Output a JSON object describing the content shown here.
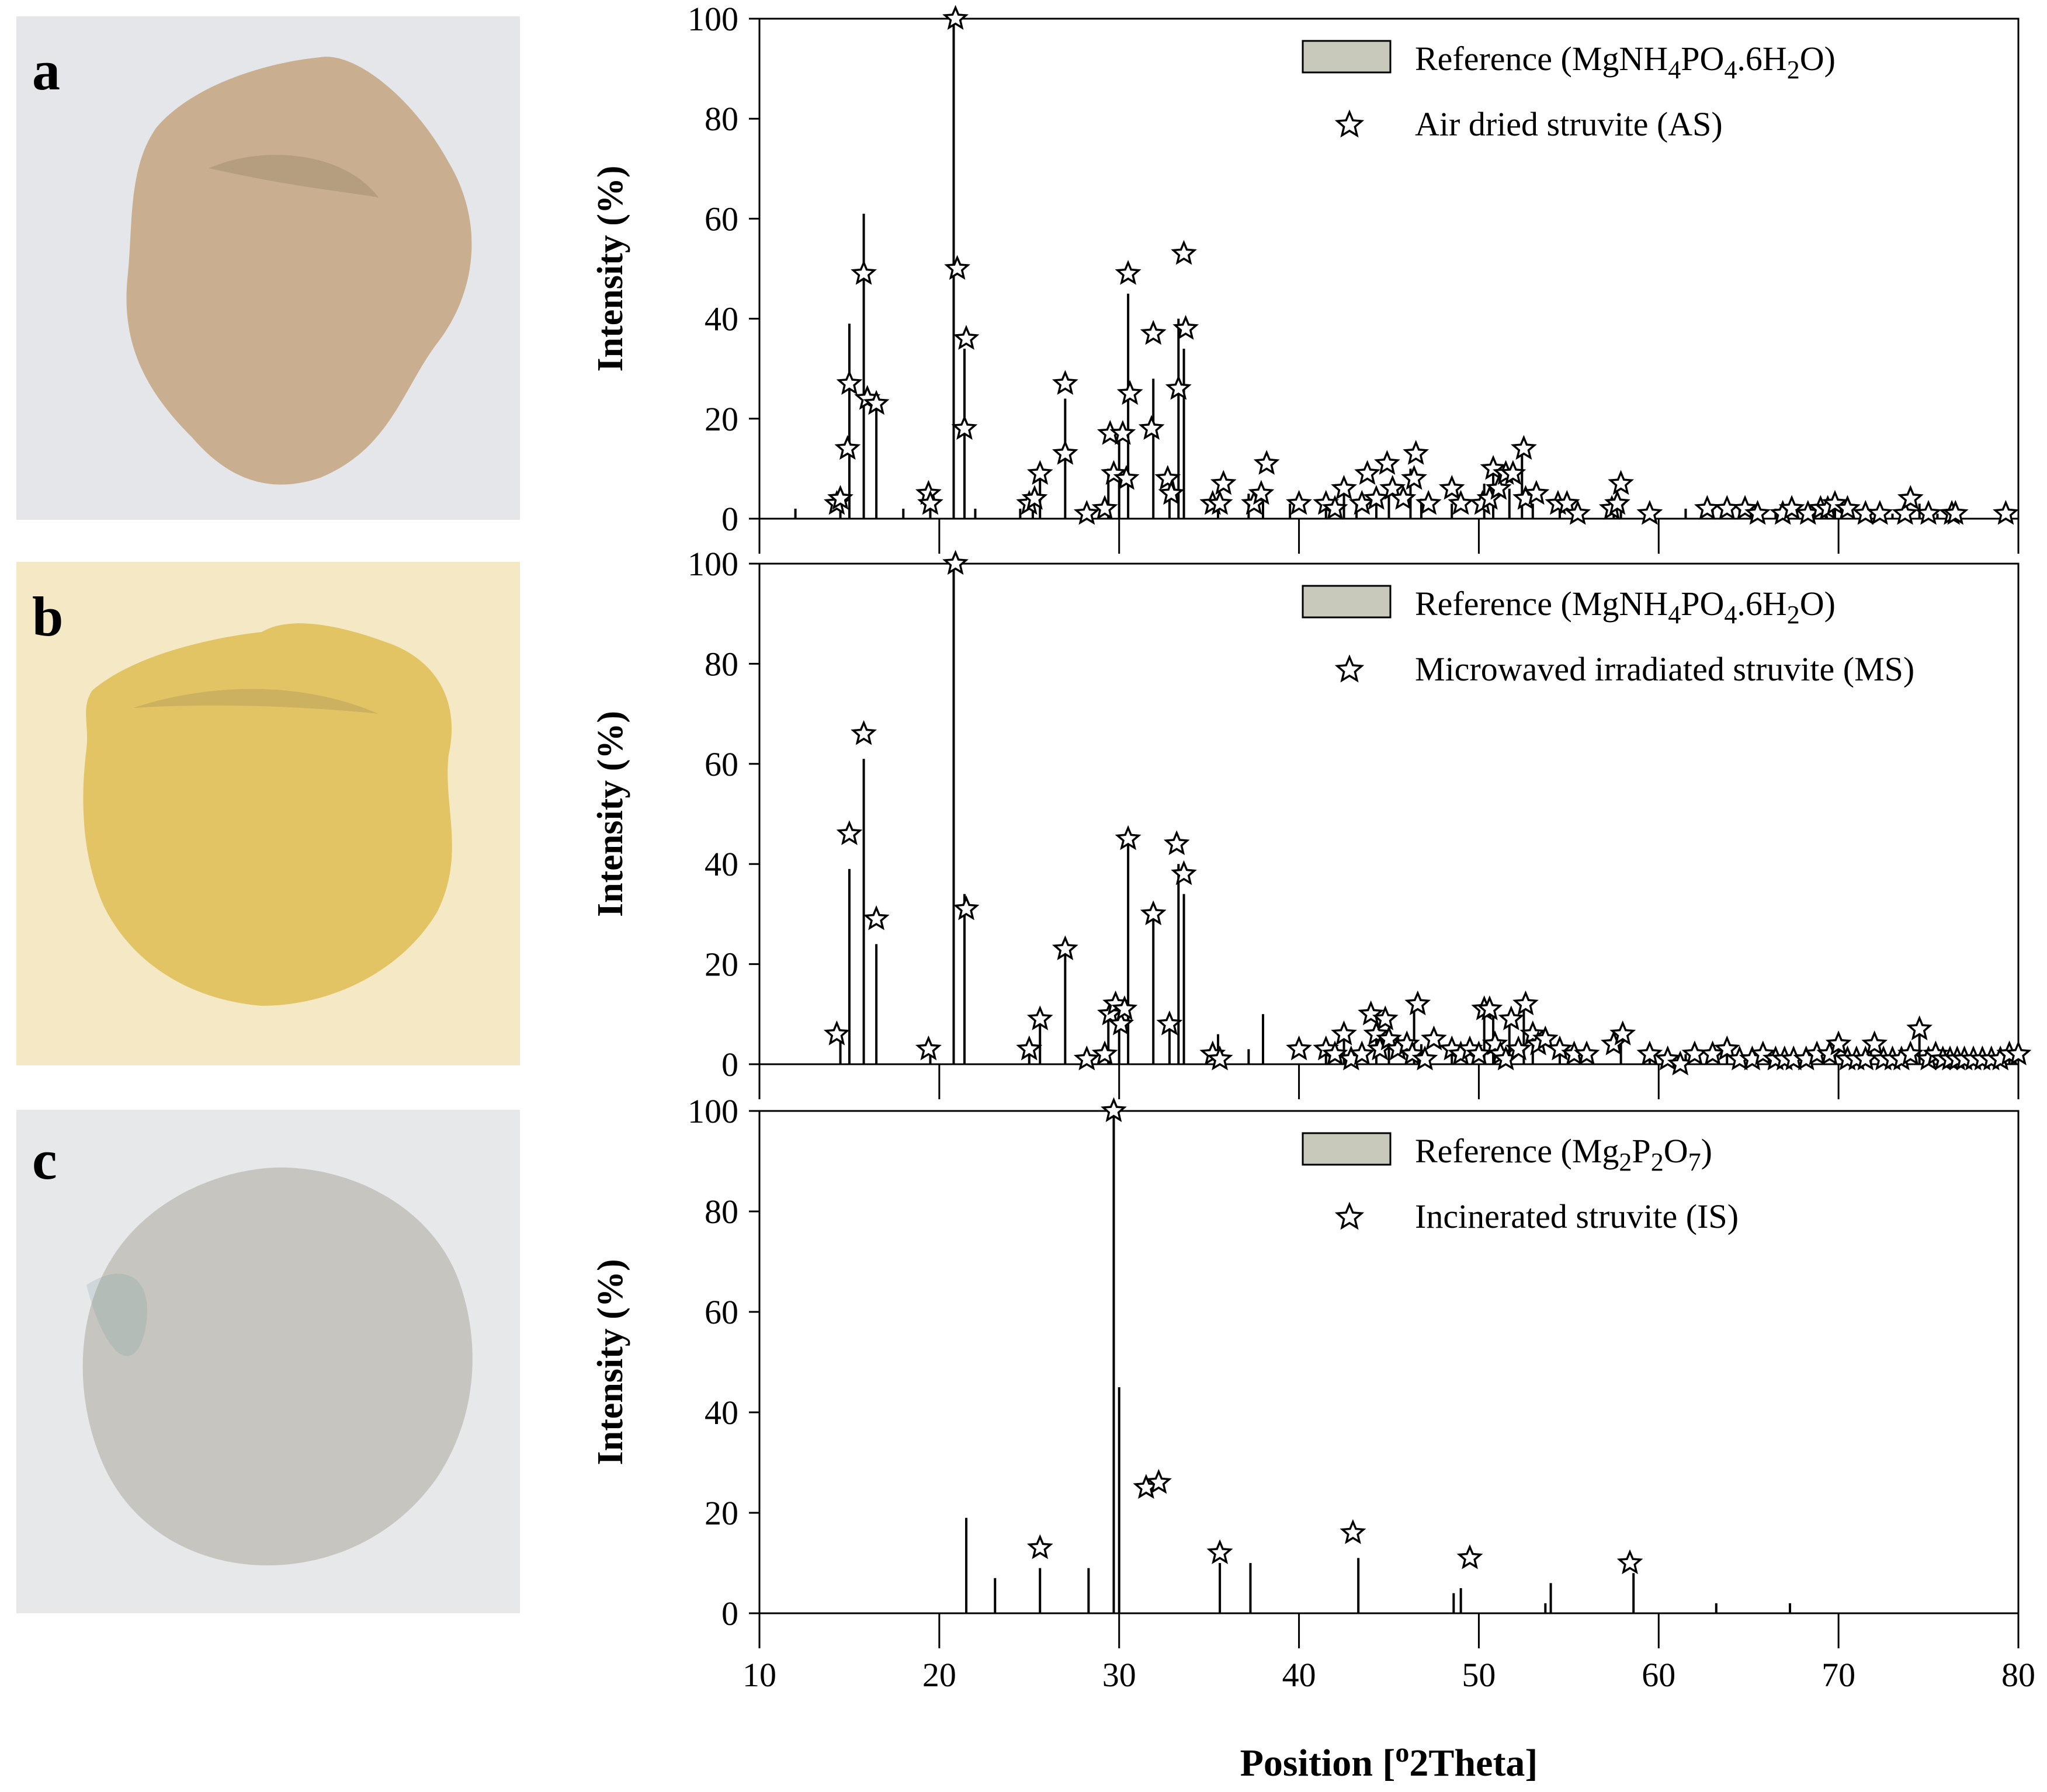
{
  "photos": [
    {
      "label": "a",
      "color": "#c9af90",
      "background": "#e4e6e9"
    },
    {
      "label": "b",
      "color": "#e2c465",
      "background": "#f4e9c4"
    },
    {
      "label": "c",
      "color": "#c6c5bf",
      "background": "#e6e8e9"
    }
  ],
  "colors": {
    "legend_box": "#c8c8bb",
    "line": "#000000",
    "star_fill": "#ffffff"
  },
  "chart_data": [
    {
      "type": "bar",
      "panel": "a",
      "ylabel": "Intensity (%)",
      "xlim": [
        10,
        80
      ],
      "ylim": [
        0,
        100
      ],
      "xticks": [
        10,
        20,
        30,
        40,
        50,
        60,
        70,
        80
      ],
      "yticks": [
        0,
        20,
        40,
        60,
        80,
        100
      ],
      "legend": {
        "reference": "Reference (MgNH4PO4.6H2O)",
        "sample": "Air dried struvite (AS)",
        "placement": "top-right"
      },
      "reference_peaks": {
        "x": [
          12.0,
          14.5,
          15.0,
          15.8,
          16.5,
          18.0,
          19.5,
          20.8,
          21.4,
          22.0,
          24.5,
          25.2,
          25.6,
          27.0,
          28.2,
          29.4,
          30.0,
          30.5,
          31.9,
          32.8,
          33.3,
          33.6,
          35.5,
          37.2,
          38.0,
          39.5,
          41.5,
          42.5,
          43.2,
          44.3,
          45.0,
          46.2,
          46.8,
          48.5,
          50.3,
          50.8,
          51.7,
          52.4,
          53.0,
          54.5,
          55.3,
          57.5,
          57.9,
          59.5,
          61.5,
          63.0,
          64.5,
          65.5,
          66.5,
          68.5,
          69.8,
          71.5,
          73.0,
          74.5,
          75.5,
          76.5,
          79.5
        ],
        "y": [
          2,
          3,
          39,
          61,
          24,
          2,
          2,
          100,
          34,
          2,
          2,
          5,
          8,
          24,
          3,
          10,
          18,
          45,
          28,
          7,
          40,
          34,
          3,
          5,
          6,
          3,
          3,
          5,
          4,
          6,
          6,
          10,
          4,
          3,
          7,
          10,
          6,
          14,
          3,
          2,
          2,
          3,
          4,
          2,
          2,
          2,
          2,
          1,
          2,
          2,
          3,
          2,
          1,
          3,
          1,
          1,
          1
        ]
      },
      "sample_markers": {
        "x": [
          14.3,
          14.5,
          14.9,
          15.0,
          15.8,
          16.0,
          16.5,
          19.4,
          19.5,
          20.9,
          21.0,
          21.5,
          21.4,
          25.0,
          25.3,
          25.6,
          27.0,
          27.0,
          28.2,
          29.2,
          29.5,
          29.7,
          30.2,
          30.4,
          30.5,
          30.6,
          31.8,
          31.9,
          32.7,
          32.9,
          33.3,
          33.6,
          33.7,
          35.2,
          35.6,
          35.8,
          37.5,
          37.9,
          38.2,
          40.0,
          41.5,
          42.0,
          42.5,
          43.5,
          43.8,
          44.3,
          44.9,
          45.2,
          45.8,
          46.4,
          46.5,
          47.2,
          48.5,
          49.0,
          50.2,
          50.6,
          50.8,
          51.1,
          51.5,
          51.9,
          52.5,
          52.6,
          53.2,
          54.4,
          54.9,
          55.5,
          57.4,
          57.7,
          57.9,
          59.5,
          62.7,
          63.8,
          64.8,
          65.5,
          66.9,
          67.4,
          68.3,
          69.0,
          69.4,
          69.8,
          70.5,
          71.5,
          72.3,
          73.7,
          74.0,
          75.0,
          76.3,
          76.5,
          79.3
        ],
        "y": [
          3,
          4,
          14,
          27,
          49,
          24,
          23,
          5,
          3,
          100,
          50,
          36,
          18,
          3,
          4,
          9,
          13,
          27,
          1,
          2,
          17,
          9,
          17,
          8,
          49,
          25,
          18,
          37,
          8,
          5,
          26,
          53,
          38,
          3,
          3,
          7,
          3,
          5,
          11,
          3,
          3,
          2,
          6,
          3,
          9,
          4,
          11,
          6,
          4,
          8,
          13,
          3,
          6,
          3,
          3,
          4,
          10,
          6,
          9,
          9,
          14,
          4,
          5,
          3,
          3,
          1,
          2,
          3,
          7,
          1,
          2,
          2,
          2,
          1,
          1,
          2,
          1,
          2,
          2,
          3,
          2,
          1,
          1,
          1,
          4,
          1,
          1,
          1,
          1
        ]
      }
    },
    {
      "type": "bar",
      "panel": "b",
      "ylabel": "Intensity (%)",
      "xlim": [
        10,
        80
      ],
      "ylim": [
        0,
        100
      ],
      "xticks": [
        10,
        20,
        30,
        40,
        50,
        60,
        70,
        80
      ],
      "yticks": [
        0,
        20,
        40,
        60,
        80,
        100
      ],
      "legend": {
        "reference": "Reference (MgNH4PO4.6H2O)",
        "sample": "Microwaved irradiated struvite (MS)",
        "placement": "top-right"
      },
      "reference_peaks": {
        "x": [
          14.5,
          15.0,
          15.8,
          16.5,
          19.5,
          20.8,
          21.4,
          25.0,
          25.6,
          27.0,
          28.2,
          29.4,
          30.0,
          30.5,
          31.9,
          32.8,
          33.3,
          33.6,
          35.5,
          37.2,
          38.0,
          41.5,
          42.5,
          44.3,
          45.0,
          46.4,
          46.8,
          48.5,
          50.3,
          50.8,
          51.7,
          52.5,
          53.0,
          54.5,
          57.9,
          59.5,
          61.5,
          63.8,
          65.5,
          68.5,
          69.8,
          71.8,
          74.5,
          76.0,
          79.5
        ],
        "y": [
          6,
          39,
          61,
          24,
          4,
          100,
          34,
          4,
          8,
          24,
          2,
          10,
          12,
          45,
          30,
          8,
          40,
          34,
          6,
          3,
          10,
          3,
          5,
          8,
          7,
          12,
          4,
          3,
          11,
          11,
          8,
          12,
          6,
          3,
          6,
          2,
          2,
          3,
          2,
          2,
          4,
          4,
          7,
          1,
          1
        ]
      },
      "sample_markers": {
        "x": [
          14.3,
          15.0,
          15.8,
          16.5,
          19.4,
          20.9,
          21.5,
          25.0,
          25.6,
          27.0,
          28.2,
          29.2,
          29.5,
          29.8,
          30.1,
          30.3,
          30.5,
          31.9,
          32.8,
          33.2,
          33.6,
          35.2,
          35.6,
          40.0,
          41.5,
          42.0,
          42.5,
          42.9,
          43.5,
          44.0,
          44.3,
          44.5,
          44.8,
          45.0,
          45.5,
          46.0,
          46.3,
          46.6,
          47.0,
          47.5,
          48.5,
          49.0,
          49.5,
          50.0,
          50.3,
          50.6,
          50.9,
          51.2,
          51.5,
          51.8,
          52.2,
          52.6,
          53.0,
          53.3,
          53.7,
          54.5,
          55.3,
          56.0,
          57.5,
          58.0,
          59.5,
          60.5,
          61.2,
          62.0,
          63.0,
          63.8,
          64.5,
          65.2,
          65.8,
          66.5,
          67.0,
          67.5,
          68.2,
          68.8,
          69.5,
          70.0,
          70.5,
          71.0,
          71.5,
          72.0,
          72.5,
          73.0,
          73.5,
          74.0,
          74.5,
          75.0,
          75.4,
          75.8,
          76.2,
          76.6,
          77.0,
          77.5,
          78.0,
          78.5,
          79.0,
          79.5,
          80.0
        ],
        "y": [
          6,
          46,
          66,
          29,
          3,
          100,
          31,
          3,
          9,
          23,
          1,
          2,
          10,
          12,
          8,
          11,
          45,
          30,
          8,
          44,
          38,
          2,
          1,
          3,
          3,
          2,
          6,
          1,
          2,
          10,
          6,
          3,
          9,
          5,
          3,
          4,
          2,
          12,
          1,
          5,
          3,
          2,
          3,
          2,
          11,
          11,
          4,
          2,
          1,
          9,
          3,
          12,
          6,
          4,
          5,
          3,
          2,
          2,
          4,
          6,
          2,
          1,
          0,
          2,
          2,
          3,
          1,
          1,
          2,
          1,
          1,
          1,
          1,
          2,
          2,
          4,
          1,
          1,
          1,
          4,
          1,
          1,
          1,
          2,
          7,
          1,
          2,
          1,
          1,
          1,
          1,
          1,
          1,
          1,
          1,
          2,
          2
        ]
      }
    },
    {
      "type": "bar",
      "panel": "c",
      "xlabel": "Position [o2Theta]",
      "ylabel": "Intensity (%)",
      "xlim": [
        10,
        80
      ],
      "ylim": [
        0,
        100
      ],
      "xticks": [
        10,
        20,
        30,
        40,
        50,
        60,
        70,
        80
      ],
      "yticks": [
        0,
        20,
        40,
        60,
        80,
        100
      ],
      "legend": {
        "reference": "Reference (Mg2P2O7)",
        "sample": "Incinerated struvite (IS)",
        "placement": "top-right"
      },
      "reference_peaks": {
        "x": [
          21.5,
          23.1,
          25.6,
          28.3,
          29.7,
          30.0,
          35.6,
          37.3,
          43.3,
          48.6,
          49.0,
          53.7,
          54.0,
          58.6,
          63.2,
          67.3
        ],
        "y": [
          19,
          7,
          9,
          9,
          100,
          45,
          10,
          10,
          11,
          4,
          5,
          2,
          6,
          8,
          2,
          2
        ]
      },
      "sample_markers": {
        "x": [
          25.6,
          29.7,
          31.5,
          32.2,
          35.6,
          43.0,
          49.5,
          58.4
        ],
        "y": [
          13,
          100,
          25,
          26,
          12,
          16,
          11,
          10
        ]
      }
    }
  ]
}
